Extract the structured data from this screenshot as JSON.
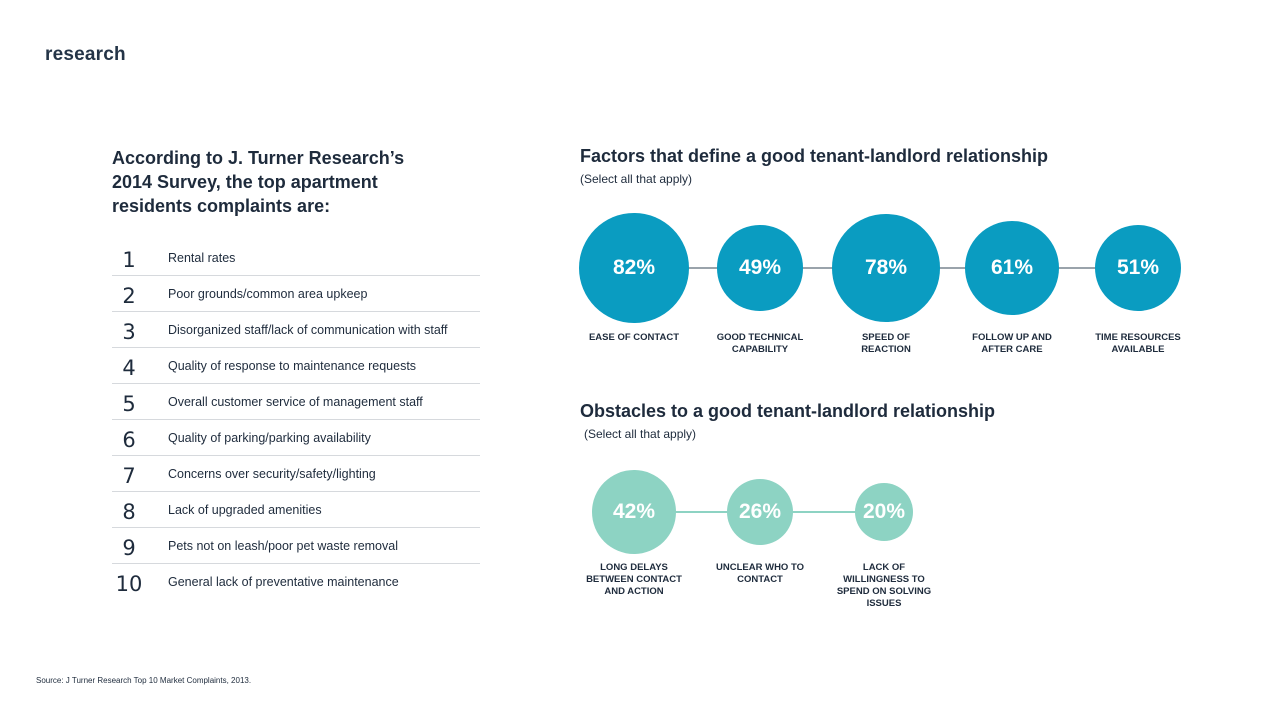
{
  "brand": "research",
  "left": {
    "title": "According to J. Turner Research’s 2014 Survey, the top apartment residents complaints are:",
    "complaints": [
      {
        "rank": "1",
        "text": "Rental rates"
      },
      {
        "rank": "2",
        "text": "Poor grounds/common area upkeep"
      },
      {
        "rank": "3",
        "text": "Disorganized staff/lack of communication with staff"
      },
      {
        "rank": "4",
        "text": "Quality of response to maintenance requests"
      },
      {
        "rank": "5",
        "text": "Overall customer service of management staff"
      },
      {
        "rank": "6",
        "text": "Quality of parking/parking availability"
      },
      {
        "rank": "7",
        "text": "Concerns over security/safety/lighting"
      },
      {
        "rank": "8",
        "text": "Lack of upgraded amenities"
      },
      {
        "rank": "9",
        "text": "Pets not on leash/poor pet waste removal"
      },
      {
        "rank": "10",
        "text": "General lack of preventative maintenance"
      }
    ]
  },
  "factors": {
    "title": "Factors that define a good tenant-landlord relationship",
    "subtitle": "(Select all that apply)",
    "color": "#0a9cc1",
    "items": [
      {
        "value": 82,
        "display": "82%",
        "label": "EASE OF CONTACT"
      },
      {
        "value": 49,
        "display": "49%",
        "label": "GOOD TECHNICAL CAPABILITY"
      },
      {
        "value": 78,
        "display": "78%",
        "label": "SPEED OF REACTION"
      },
      {
        "value": 61,
        "display": "61%",
        "label": "FOLLOW UP AND AFTER CARE"
      },
      {
        "value": 51,
        "display": "51%",
        "label": "TIME RESOURCES AVAILABLE"
      }
    ]
  },
  "obstacles": {
    "title": "Obstacles to a good tenant-landlord relationship",
    "subtitle": "(Select all that apply)",
    "color": "#8dd3c3",
    "items": [
      {
        "value": 42,
        "display": "42%",
        "label": "LONG DELAYS BETWEEN CONTACT AND ACTION"
      },
      {
        "value": 26,
        "display": "26%",
        "label": "UNCLEAR WHO TO CONTACT"
      },
      {
        "value": 20,
        "display": "20%",
        "label": "LACK OF WILLINGNESS TO SPEND ON SOLVING ISSUES"
      }
    ]
  },
  "source": "Source: J Turner Research Top 10 Market Complaints, 2013."
}
